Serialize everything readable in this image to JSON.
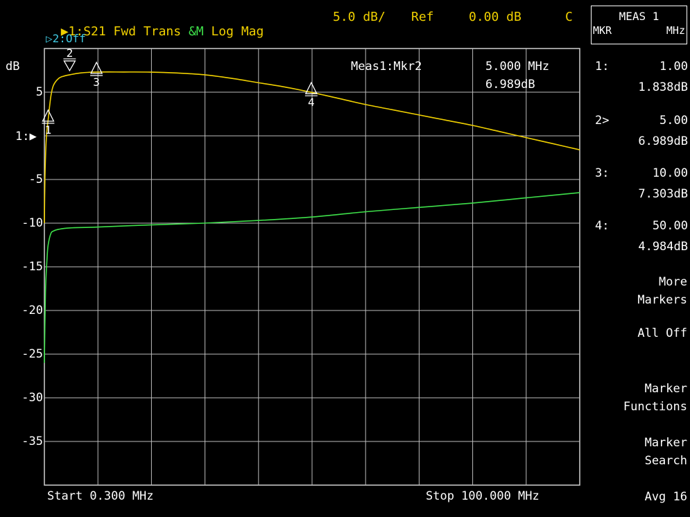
{
  "header": {
    "trace1_prefix": "▶1:",
    "trace1_label": "S21 Fwd Trans",
    "trace1_mem": "&M",
    "trace1_format": "Log Mag",
    "scale": "5.0 dB/",
    "ref_label": "Ref",
    "ref_value": "0.00 dB",
    "coupling": "C",
    "trace2": "▷2:Off"
  },
  "axis": {
    "unit": "dB",
    "ref_marker": "1:",
    "labels": [
      "5",
      "",
      "-5",
      "-10",
      "-15",
      "-20",
      "-25",
      "-30",
      "-35"
    ],
    "start": "Start 0.300 MHz",
    "stop": "Stop 100.000 MHz"
  },
  "active_marker": {
    "label": "Meas1:Mkr2",
    "freq": "5.000 MHz",
    "value": "6.989dB"
  },
  "marker_flags": [
    "1",
    "2",
    "3",
    "4"
  ],
  "sidebar": {
    "title_line1": "MEAS 1",
    "title_line2_left": "MKR",
    "title_line2_right": "MHz",
    "markers": [
      {
        "id": "1:",
        "freq": "1.00",
        "value": "1.838dB"
      },
      {
        "id": "2>",
        "freq": "5.00",
        "value": "6.989dB"
      },
      {
        "id": "3:",
        "freq": "10.00",
        "value": "7.303dB"
      },
      {
        "id": "4:",
        "freq": "50.00",
        "value": "4.984dB"
      }
    ],
    "softkeys": {
      "more_markers_1": "More",
      "more_markers_2": "Markers",
      "all_off": "All Off",
      "marker_functions_1": "Marker",
      "marker_functions_2": "Functions",
      "marker_search_1": "Marker",
      "marker_search_2": "Search",
      "avg": "Avg 16"
    }
  },
  "chart_data": {
    "type": "line",
    "x_unit": "MHz",
    "y_unit": "dB",
    "xlim": [
      0.3,
      100.0
    ],
    "ylim": [
      -40,
      10
    ],
    "grid": true,
    "series": [
      {
        "color": "#f0d000",
        "x": [
          0.3,
          0.4,
          0.6,
          0.8,
          1.0,
          1.5,
          2,
          3,
          4,
          5,
          7,
          10,
          15,
          20,
          25,
          30,
          35,
          40,
          45,
          50,
          55,
          60,
          65,
          70,
          75,
          80,
          85,
          90,
          95,
          100
        ],
        "y": [
          -10,
          -5,
          -1,
          0.8,
          1.838,
          4.5,
          5.8,
          6.6,
          6.85,
          6.989,
          7.2,
          7.303,
          7.31,
          7.3,
          7.2,
          7.0,
          6.6,
          6.1,
          5.6,
          4.984,
          4.3,
          3.6,
          3.0,
          2.4,
          1.8,
          1.2,
          0.5,
          -0.2,
          -0.9,
          -1.6
        ]
      },
      {
        "color": "#3ee04a",
        "x": [
          0.3,
          0.5,
          0.8,
          1.0,
          1.5,
          2,
          3,
          5,
          10,
          20,
          30,
          40,
          50,
          60,
          70,
          80,
          90,
          100
        ],
        "y": [
          -26,
          -18,
          -14,
          -12.5,
          -11.2,
          -10.9,
          -10.7,
          -10.55,
          -10.45,
          -10.2,
          -10.0,
          -9.7,
          -9.3,
          -8.7,
          -8.2,
          -7.7,
          -7.1,
          -6.5
        ]
      }
    ],
    "markers": [
      {
        "n": "1",
        "x": 1.0,
        "y": 1.838
      },
      {
        "n": "2",
        "x": 5.0,
        "y": 6.989
      },
      {
        "n": "3",
        "x": 10.0,
        "y": 7.303
      },
      {
        "n": "4",
        "x": 50.0,
        "y": 4.984
      }
    ]
  }
}
